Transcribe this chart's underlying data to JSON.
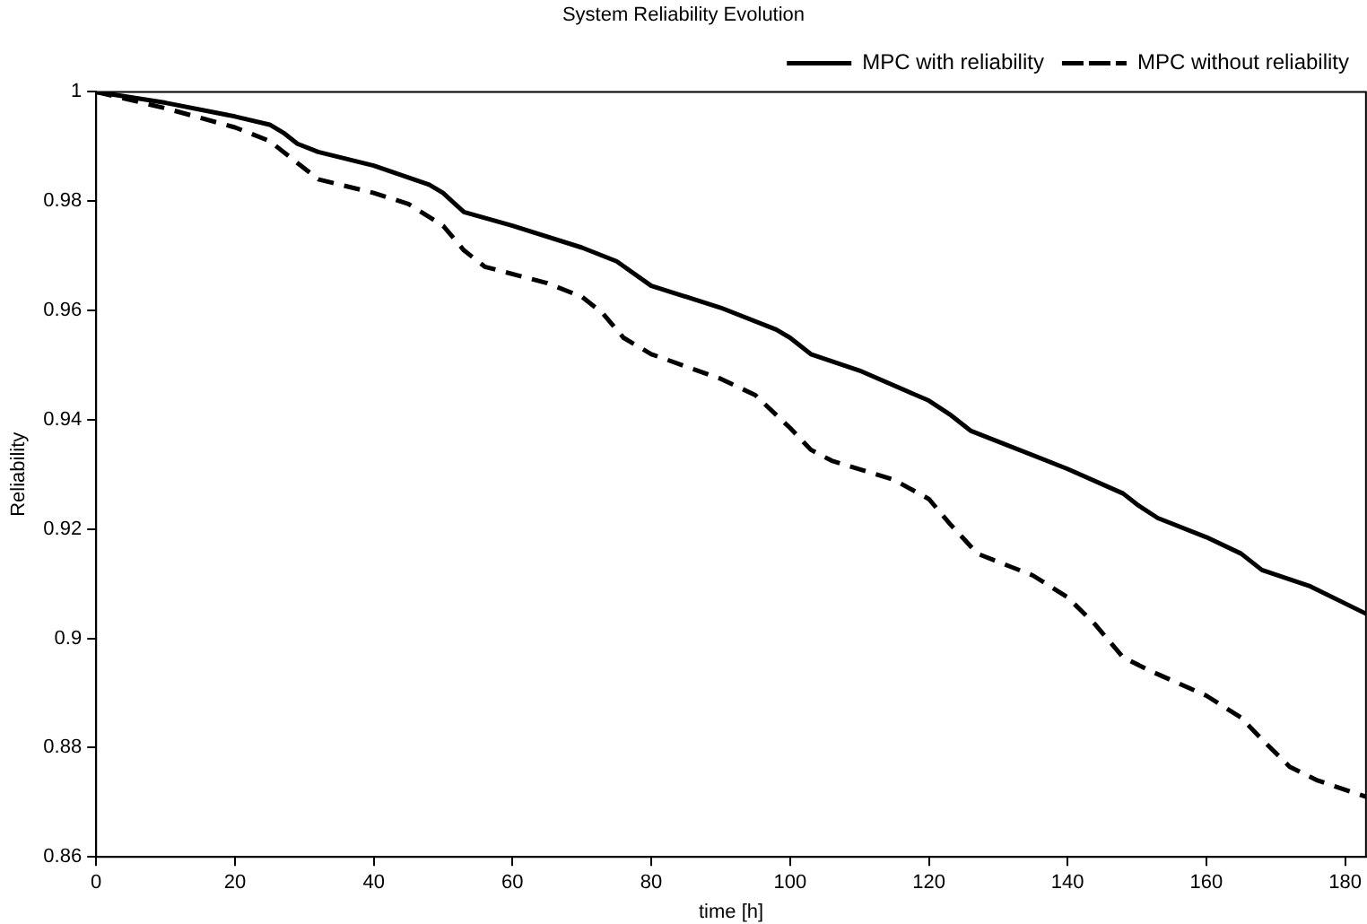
{
  "chart_data": {
    "type": "line",
    "title": "System Reliability Evolution",
    "xlabel": "time [h]",
    "ylabel": "Reliability",
    "xlim": [
      0,
      183
    ],
    "xticks": [
      0,
      20,
      40,
      60,
      80,
      100,
      120,
      140,
      160,
      180
    ],
    "ylim": [
      0.86,
      1
    ],
    "yticks": [
      0.86,
      0.88,
      0.9,
      0.92,
      0.94,
      0.96,
      0.98,
      1
    ],
    "grid": false,
    "legend": "top right",
    "marker": "none",
    "series": [
      {
        "name": "MPC with reliability",
        "color": "#000000",
        "line_style": "solid",
        "x": [
          0,
          10,
          20,
          25,
          27,
          29,
          32,
          40,
          48,
          50,
          53,
          60,
          70,
          75,
          80,
          90,
          98,
          100,
          103,
          110,
          120,
          123,
          126,
          140,
          148,
          150,
          153,
          160,
          165,
          168,
          175,
          183
        ],
        "values": [
          1,
          0.998,
          0.9955,
          0.994,
          0.9925,
          0.9905,
          0.989,
          0.9865,
          0.983,
          0.9815,
          0.978,
          0.9755,
          0.9715,
          0.969,
          0.9645,
          0.9605,
          0.9565,
          0.955,
          0.952,
          0.949,
          0.9435,
          0.941,
          0.938,
          0.931,
          0.9265,
          0.9245,
          0.922,
          0.9185,
          0.9155,
          0.9125,
          0.9095,
          0.9045
        ]
      },
      {
        "name": "MPC without reliability",
        "color": "#000000",
        "line_style": "dashed",
        "x": [
          0,
          10,
          20,
          25,
          28,
          32,
          40,
          45,
          50,
          53,
          56,
          65,
          70,
          73,
          76,
          80,
          90,
          95,
          100,
          103,
          106,
          115,
          120,
          123,
          127,
          135,
          140,
          144,
          148,
          152,
          160,
          165,
          168,
          172,
          176,
          183
        ],
        "values": [
          1,
          0.997,
          0.9935,
          0.991,
          0.988,
          0.984,
          0.9815,
          0.9795,
          0.9755,
          0.971,
          0.968,
          0.965,
          0.9625,
          0.9595,
          0.955,
          0.952,
          0.9475,
          0.9445,
          0.9385,
          0.9345,
          0.9325,
          0.929,
          0.9255,
          0.921,
          0.9155,
          0.9115,
          0.9075,
          0.9025,
          0.8965,
          0.894,
          0.8895,
          0.8855,
          0.8815,
          0.8765,
          0.874,
          0.871
        ]
      }
    ]
  }
}
